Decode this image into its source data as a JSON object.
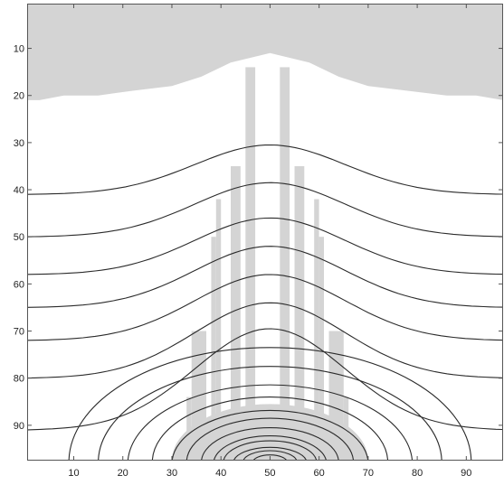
{
  "chart_data": {
    "type": "heatmap",
    "title": "",
    "xlabel": "",
    "ylabel": "",
    "xlim": [
      0.5,
      97.5
    ],
    "ylim": [
      0.5,
      97.5
    ],
    "y_direction": "reversed",
    "x_ticks": [
      "10",
      "20",
      "30",
      "40",
      "50",
      "60",
      "70",
      "80",
      "90"
    ],
    "y_ticks": [
      "10",
      "20",
      "30",
      "40",
      "50",
      "60",
      "70",
      "80",
      "90"
    ],
    "grid": false,
    "colors": {
      "mask": "#d4d4d4",
      "background": "#ffffff",
      "contour": "#2b2b2b",
      "axis": "#555555"
    },
    "mask_regions": {
      "top_band": {
        "x_range": [
          0.5,
          97.5
        ],
        "lower_boundary": [
          [
            0.5,
            21
          ],
          [
            3,
            21
          ],
          [
            8,
            20
          ],
          [
            15,
            20
          ],
          [
            22,
            19
          ],
          [
            30,
            18
          ],
          [
            36,
            16
          ],
          [
            42,
            13
          ],
          [
            46,
            12
          ],
          [
            50,
            11
          ],
          [
            54,
            12
          ],
          [
            58,
            13
          ],
          [
            64,
            16
          ],
          [
            70,
            18
          ],
          [
            78,
            19
          ],
          [
            86,
            20
          ],
          [
            92,
            20
          ],
          [
            97.5,
            21
          ]
        ]
      },
      "plume_columns": [
        {
          "x_range": [
            45,
            47
          ],
          "y_range": [
            14,
            98
          ]
        },
        {
          "x_range": [
            52,
            54
          ],
          "y_range": [
            14,
            98
          ]
        },
        {
          "x_range": [
            42,
            44
          ],
          "y_range": [
            35,
            98
          ]
        },
        {
          "x_range": [
            55,
            57
          ],
          "y_range": [
            35,
            98
          ]
        },
        {
          "x_range": [
            39,
            40
          ],
          "y_range": [
            42,
            98
          ]
        },
        {
          "x_range": [
            59,
            60
          ],
          "y_range": [
            42,
            98
          ]
        },
        {
          "x_range": [
            38,
            39
          ],
          "y_range": [
            50,
            98
          ]
        },
        {
          "x_range": [
            60,
            61
          ],
          "y_range": [
            50,
            98
          ]
        },
        {
          "x_range": [
            34,
            37
          ],
          "y_range": [
            70,
            98
          ]
        },
        {
          "x_range": [
            62,
            65
          ],
          "y_range": [
            70,
            98
          ]
        },
        {
          "x_range": [
            33,
            34
          ],
          "y_range": [
            84,
            98
          ]
        },
        {
          "x_range": [
            65,
            66
          ],
          "y_range": [
            84,
            98
          ]
        }
      ],
      "base_dome": {
        "center_x": 50,
        "base_y": 97.5,
        "half_width": 20,
        "height": 12
      }
    },
    "contours": {
      "center_x": 50,
      "bottom_y": 97.5,
      "open_levels": [
        {
          "y_edge": 41,
          "y_center": 30.5
        },
        {
          "y_edge": 50,
          "y_center": 38.5
        },
        {
          "y_edge": 58,
          "y_center": 46
        },
        {
          "y_edge": 65,
          "y_center": 52
        },
        {
          "y_edge": 72,
          "y_center": 58
        },
        {
          "y_edge": 80,
          "y_center": 64
        },
        {
          "y_edge": 91,
          "y_center": 69.5
        }
      ],
      "closed_levels": [
        {
          "half_width": 41,
          "y_top": 73.5
        },
        {
          "half_width": 35,
          "y_top": 77.5
        },
        {
          "half_width": 29,
          "y_top": 81
        },
        {
          "half_width": 24,
          "y_top": 84
        },
        {
          "half_width": 20,
          "y_top": 86.5
        },
        {
          "half_width": 17,
          "y_top": 88.5
        },
        {
          "half_width": 14,
          "y_top": 90.5
        },
        {
          "half_width": 11.5,
          "y_top": 92
        },
        {
          "half_width": 9.5,
          "y_top": 93.3
        },
        {
          "half_width": 7.5,
          "y_top": 94.5
        },
        {
          "half_width": 5.5,
          "y_top": 95.4
        },
        {
          "half_width": 3.5,
          "y_top": 96.3
        }
      ]
    }
  }
}
